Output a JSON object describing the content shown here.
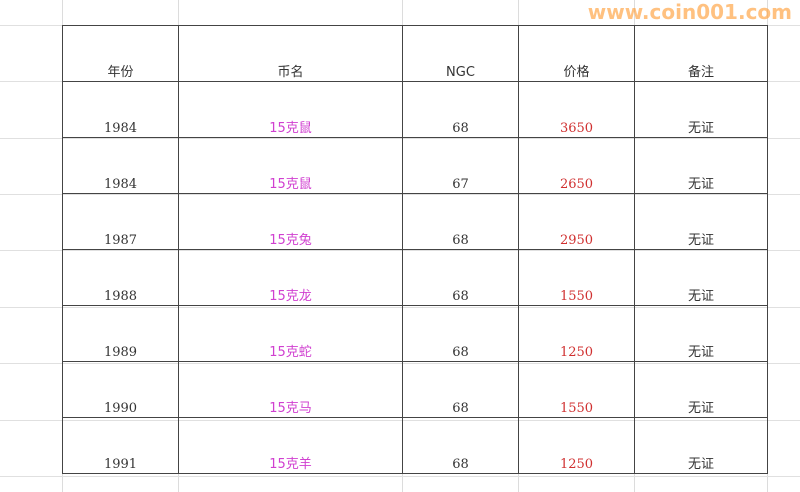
{
  "headers": [
    "年份",
    "币名",
    "NGC",
    "价格",
    "备注"
  ],
  "rows": [
    {
      "year": "1984",
      "name": "15克鼠",
      "ngc": "68",
      "price": "3650",
      "note": "无证"
    },
    {
      "year": "1984",
      "name": "15克鼠",
      "ngc": "67",
      "price": "2650",
      "note": "无证"
    },
    {
      "year": "1987",
      "name": "15克兔",
      "ngc": "68",
      "price": "2950",
      "note": "无证"
    },
    {
      "year": "1988",
      "name": "15克龙",
      "ngc": "68",
      "price": "1550",
      "note": "无证"
    },
    {
      "year": "1989",
      "name": "15克蛇",
      "ngc": "68",
      "price": "1250",
      "note": "无证"
    },
    {
      "year": "1990",
      "name": "15克马",
      "ngc": "68",
      "price": "1550",
      "note": "无证"
    },
    {
      "year": "1991",
      "name": "15克羊",
      "ngc": "68",
      "price": "1250",
      "note": "无证"
    }
  ],
  "colors": {
    "name": "#d040d0",
    "price": "#d03030",
    "watermark": "#ffa03c"
  },
  "watermark": "www.coin001.com"
}
